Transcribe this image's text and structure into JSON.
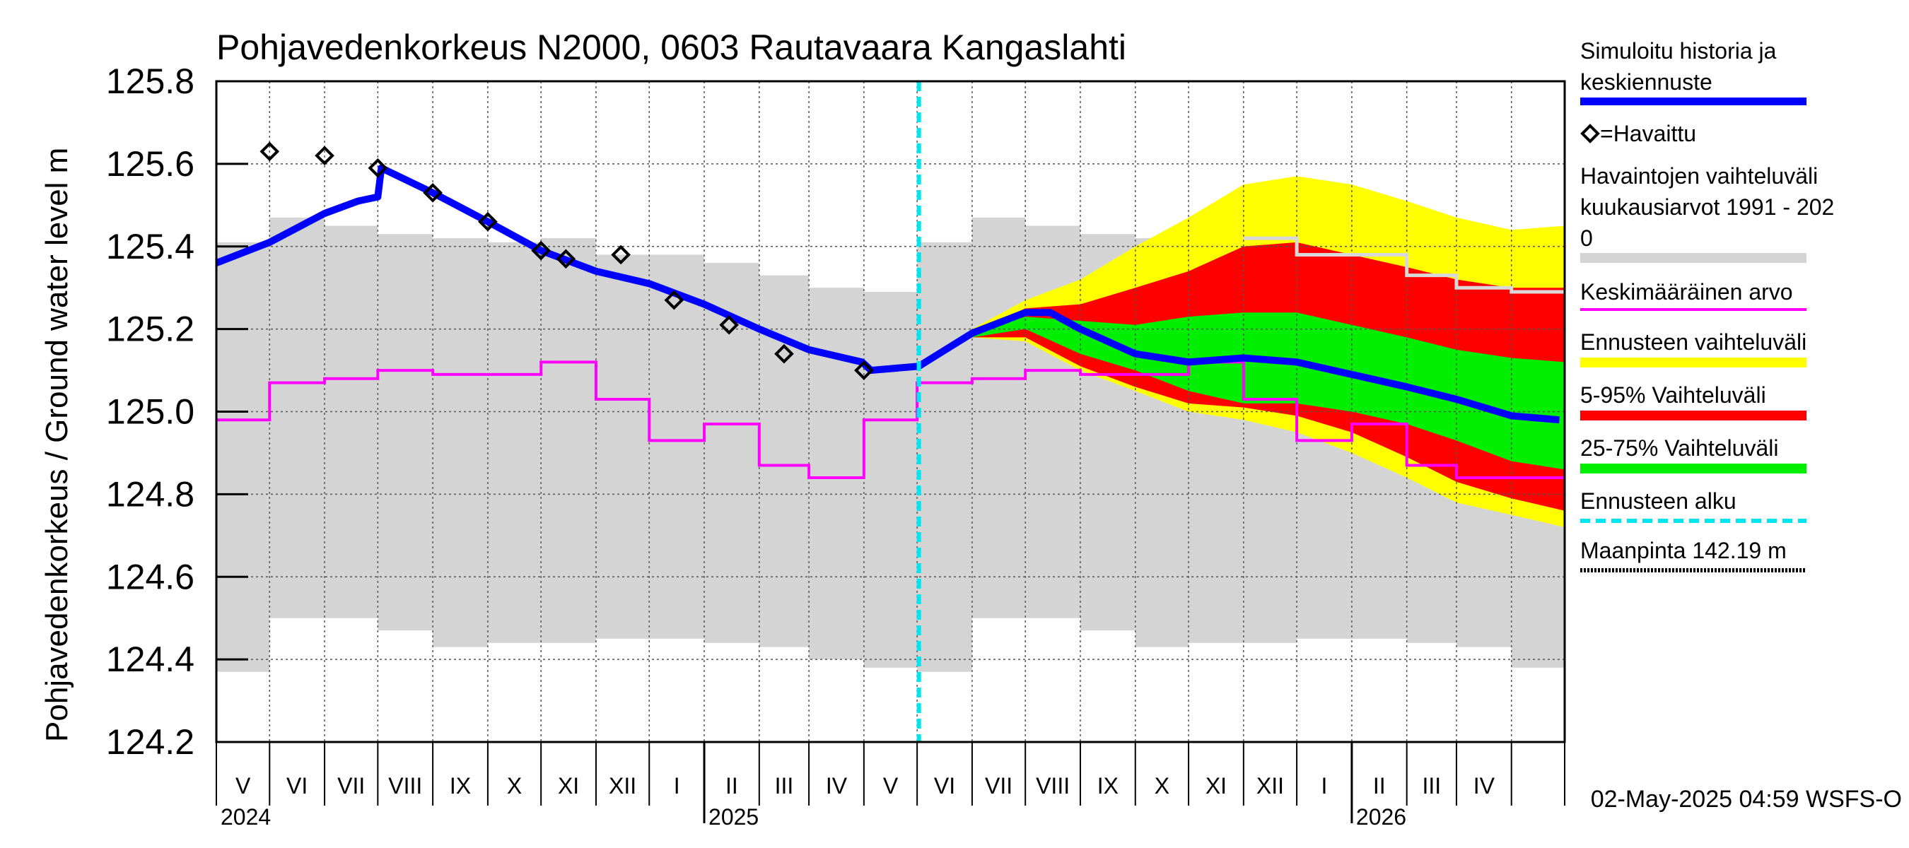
{
  "chart_data": {
    "type": "line",
    "title": "Pohjavedenkorkeus N2000, 0603 Rautavaara Kangaslahti",
    "ylabel": "Pohjavedenkorkeus / Ground water level   m",
    "ylim": [
      124.2,
      125.8
    ],
    "yticks": [
      "124.2",
      "124.4",
      "124.6",
      "124.8",
      "125.0",
      "125.2",
      "125.4",
      "125.6",
      "125.8"
    ],
    "x_range": [
      "2024-04-01",
      "2026-05-01"
    ],
    "month_labels": [
      "V",
      "VI",
      "VII",
      "VIII",
      "IX",
      "X",
      "XI",
      "XII",
      "I",
      "II",
      "III",
      "IV",
      "V",
      "VI",
      "VII",
      "VIII",
      "IX",
      "X",
      "XI",
      "XII",
      "I",
      "II",
      "III",
      "IV"
    ],
    "year_labels": [
      {
        "label": "2024",
        "date": "2024-04-01"
      },
      {
        "label": "2025",
        "date": "2025-01-01"
      },
      {
        "label": "2026",
        "date": "2026-01-01"
      }
    ],
    "forecast_start": "2025-05-02",
    "grid": true,
    "legend_position": "right",
    "timestamp": "02-May-2025 04:59 WSFS-O",
    "legend": [
      {
        "label": "Simuloitu historia ja keskiennuste",
        "color": "#0000ff"
      },
      {
        "label": "=Havaittu",
        "marker": "diamond"
      },
      {
        "label": "Havaintojen vaihteluväli kuukausiarvot 1991 - 2020",
        "color": "#d4d4d4"
      },
      {
        "label": "Keskimääräinen arvo",
        "color": "#ff00ff"
      },
      {
        "label": "Ennusteen vaihteluväli",
        "color": "#ffff00"
      },
      {
        "label": "5-95% Vaihteluväli",
        "color": "#ff0000"
      },
      {
        "label": "25-75% Vaihteluväli",
        "color": "#00ee00"
      },
      {
        "label": "Ennusteen alku",
        "color": "#00e5ee"
      },
      {
        "label": "Maanpinta 142.19 m",
        "color": "#000000"
      }
    ],
    "monthly_range_grey": {
      "months": [
        "2024-04",
        "2024-05",
        "2024-06",
        "2024-07",
        "2024-08",
        "2024-09",
        "2024-10",
        "2024-11",
        "2024-12",
        "2025-01",
        "2025-02",
        "2025-03",
        "2025-04",
        "2025-05",
        "2025-06",
        "2025-07",
        "2025-08",
        "2025-09",
        "2025-10",
        "2025-11",
        "2025-12",
        "2026-01",
        "2026-02",
        "2026-03",
        "2026-04"
      ],
      "max": [
        125.41,
        125.47,
        125.45,
        125.43,
        125.42,
        125.41,
        125.42,
        125.38,
        125.38,
        125.36,
        125.33,
        125.3,
        125.29,
        125.41,
        125.47,
        125.45,
        125.43,
        125.42,
        125.41,
        125.42,
        125.38,
        125.38,
        125.36,
        125.33,
        125.3
      ],
      "min": [
        124.37,
        124.5,
        124.5,
        124.47,
        124.43,
        124.44,
        124.44,
        124.45,
        124.45,
        124.44,
        124.43,
        124.4,
        124.38,
        124.37,
        124.5,
        124.5,
        124.47,
        124.43,
        124.44,
        124.44,
        124.45,
        124.45,
        124.44,
        124.43,
        124.38
      ]
    },
    "monthly_mean": {
      "months": [
        "2024-04",
        "2024-05",
        "2024-06",
        "2024-07",
        "2024-08",
        "2024-09",
        "2024-10",
        "2024-11",
        "2024-12",
        "2025-01",
        "2025-02",
        "2025-03",
        "2025-04",
        "2025-05",
        "2025-06",
        "2025-07",
        "2025-08",
        "2025-09",
        "2025-10",
        "2025-11",
        "2025-12",
        "2026-01",
        "2026-02",
        "2026-03",
        "2026-04"
      ],
      "values": [
        124.98,
        125.07,
        125.08,
        125.1,
        125.09,
        125.09,
        125.12,
        125.03,
        124.93,
        124.97,
        124.87,
        124.84,
        124.98,
        125.07,
        125.08,
        125.1,
        125.09,
        125.09,
        125.12,
        125.03,
        124.93,
        124.97,
        124.87,
        124.84,
        124.84
      ]
    },
    "observed": [
      {
        "x": "2024-05-01",
        "y": 125.63
      },
      {
        "x": "2024-06-01",
        "y": 125.62
      },
      {
        "x": "2024-07-01",
        "y": 125.59
      },
      {
        "x": "2024-08-01",
        "y": 125.53
      },
      {
        "x": "2024-09-01",
        "y": 125.46
      },
      {
        "x": "2024-10-01",
        "y": 125.39
      },
      {
        "x": "2024-10-15",
        "y": 125.37
      },
      {
        "x": "2024-11-15",
        "y": 125.38
      },
      {
        "x": "2024-12-15",
        "y": 125.27
      },
      {
        "x": "2025-01-15",
        "y": 125.21
      },
      {
        "x": "2025-02-15",
        "y": 125.14
      },
      {
        "x": "2025-04-01",
        "y": 125.1
      }
    ],
    "simulated": [
      {
        "x": "2024-04-01",
        "y": 125.36
      },
      {
        "x": "2024-05-01",
        "y": 125.41
      },
      {
        "x": "2024-06-01",
        "y": 125.48
      },
      {
        "x": "2024-06-20",
        "y": 125.51
      },
      {
        "x": "2024-07-01",
        "y": 125.52
      },
      {
        "x": "2024-07-03",
        "y": 125.59
      },
      {
        "x": "2024-08-01",
        "y": 125.53
      },
      {
        "x": "2024-09-01",
        "y": 125.46
      },
      {
        "x": "2024-10-01",
        "y": 125.39
      },
      {
        "x": "2024-11-01",
        "y": 125.34
      },
      {
        "x": "2024-12-01",
        "y": 125.31
      },
      {
        "x": "2025-01-01",
        "y": 125.26
      },
      {
        "x": "2025-02-01",
        "y": 125.2
      },
      {
        "x": "2025-03-01",
        "y": 125.15
      },
      {
        "x": "2025-03-31",
        "y": 125.12
      },
      {
        "x": "2025-04-05",
        "y": 125.1
      },
      {
        "x": "2025-05-02",
        "y": 125.11
      }
    ],
    "forecast_median": [
      {
        "x": "2025-05-02",
        "y": 125.11
      },
      {
        "x": "2025-06-01",
        "y": 125.19
      },
      {
        "x": "2025-07-01",
        "y": 125.24
      },
      {
        "x": "2025-07-15",
        "y": 125.24
      },
      {
        "x": "2025-08-01",
        "y": 125.2
      },
      {
        "x": "2025-09-01",
        "y": 125.14
      },
      {
        "x": "2025-10-01",
        "y": 125.12
      },
      {
        "x": "2025-11-01",
        "y": 125.13
      },
      {
        "x": "2025-12-01",
        "y": 125.12
      },
      {
        "x": "2026-01-01",
        "y": 125.09
      },
      {
        "x": "2026-02-01",
        "y": 125.06
      },
      {
        "x": "2026-03-01",
        "y": 125.03
      },
      {
        "x": "2026-04-01",
        "y": 124.99
      },
      {
        "x": "2026-04-28",
        "y": 124.98
      }
    ],
    "forecast_envelope_dates": [
      "2025-05-02",
      "2025-06-01",
      "2025-07-01",
      "2025-08-01",
      "2025-09-01",
      "2025-10-01",
      "2025-11-01",
      "2025-12-01",
      "2026-01-01",
      "2026-02-01",
      "2026-03-01",
      "2026-04-01",
      "2026-05-01"
    ],
    "forecast_yellow": {
      "upper": [
        125.11,
        125.2,
        125.27,
        125.32,
        125.4,
        125.47,
        125.55,
        125.57,
        125.55,
        125.51,
        125.47,
        125.44,
        125.45
      ],
      "lower": [
        125.11,
        125.18,
        125.17,
        125.1,
        125.05,
        125.0,
        124.98,
        124.95,
        124.9,
        124.84,
        124.78,
        124.75,
        124.72
      ]
    },
    "forecast_red": {
      "upper": [
        125.11,
        125.19,
        125.25,
        125.26,
        125.3,
        125.34,
        125.4,
        125.41,
        125.38,
        125.35,
        125.32,
        125.3,
        125.3
      ],
      "lower": [
        125.11,
        125.18,
        125.18,
        125.11,
        125.06,
        125.02,
        125.01,
        124.99,
        124.95,
        124.89,
        124.83,
        124.79,
        124.76
      ]
    },
    "forecast_green": {
      "upper": [
        125.11,
        125.19,
        125.23,
        125.22,
        125.21,
        125.23,
        125.24,
        125.24,
        125.21,
        125.18,
        125.15,
        125.13,
        125.12
      ],
      "lower": [
        125.11,
        125.18,
        125.2,
        125.14,
        125.1,
        125.05,
        125.02,
        125.02,
        125.0,
        124.97,
        124.93,
        124.88,
        124.86
      ]
    },
    "monthly_max_line_forecast": {
      "months": [
        "2025-11",
        "2025-12",
        "2026-01",
        "2026-02",
        "2026-03",
        "2026-04"
      ],
      "values": [
        125.42,
        125.38,
        125.38,
        125.33,
        125.3,
        125.29
      ]
    }
  }
}
